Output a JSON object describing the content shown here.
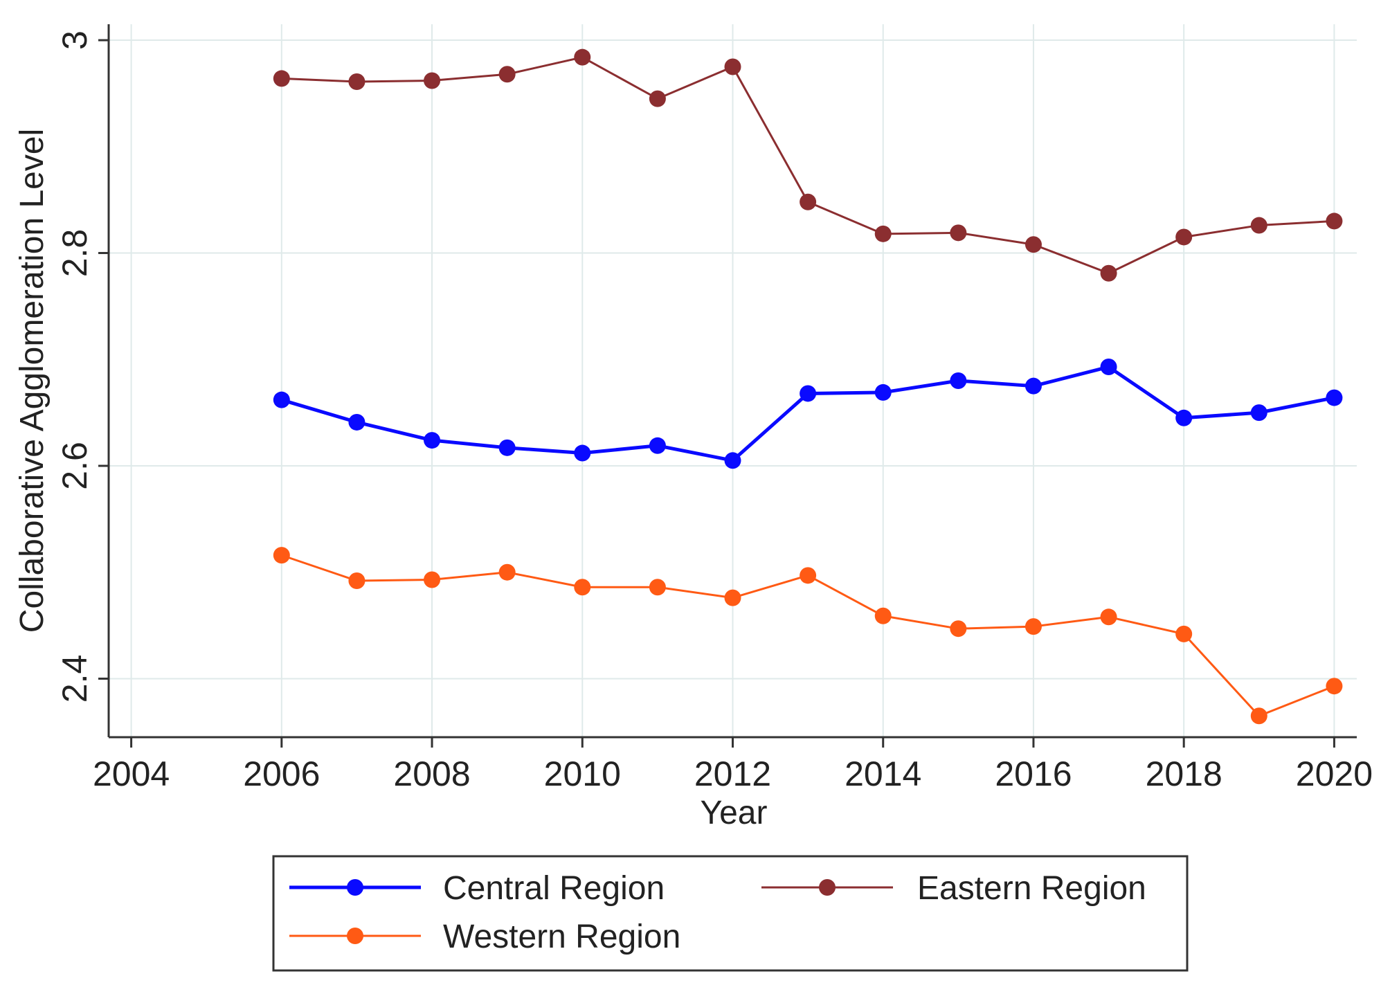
{
  "chart_data": {
    "type": "line",
    "title": "",
    "xlabel": "Year",
    "ylabel": "Collaborative Agglomeration Level",
    "xlim": [
      2003.7,
      2020.3
    ],
    "ylim": [
      2.345,
      3.015
    ],
    "xticks": [
      "2004",
      "2006",
      "2008",
      "2010",
      "2012",
      "2014",
      "2016",
      "2018",
      "2020"
    ],
    "yticks": [
      "2.4",
      "2.6",
      "2.8",
      "3"
    ],
    "grid": true,
    "legend_position": "bottom",
    "x": [
      2006,
      2007,
      2008,
      2009,
      2010,
      2011,
      2012,
      2013,
      2014,
      2015,
      2016,
      2017,
      2018,
      2019,
      2020
    ],
    "series": [
      {
        "name": "Central Region",
        "color": "#0a0aff",
        "values": [
          2.662,
          2.641,
          2.624,
          2.617,
          2.612,
          2.619,
          2.605,
          2.668,
          2.669,
          2.68,
          2.675,
          2.693,
          2.645,
          2.65,
          2.664
        ]
      },
      {
        "name": "Eastern Region",
        "color": "#8b2e30",
        "values": [
          2.964,
          2.961,
          2.962,
          2.968,
          2.984,
          2.945,
          2.975,
          2.848,
          2.818,
          2.819,
          2.808,
          2.781,
          2.815,
          2.826,
          2.83
        ]
      },
      {
        "name": "Western Region",
        "color": "#ff5a14",
        "values": [
          2.516,
          2.492,
          2.493,
          2.5,
          2.486,
          2.486,
          2.476,
          2.497,
          2.459,
          2.447,
          2.449,
          2.458,
          2.442,
          2.365,
          2.393
        ]
      }
    ]
  }
}
